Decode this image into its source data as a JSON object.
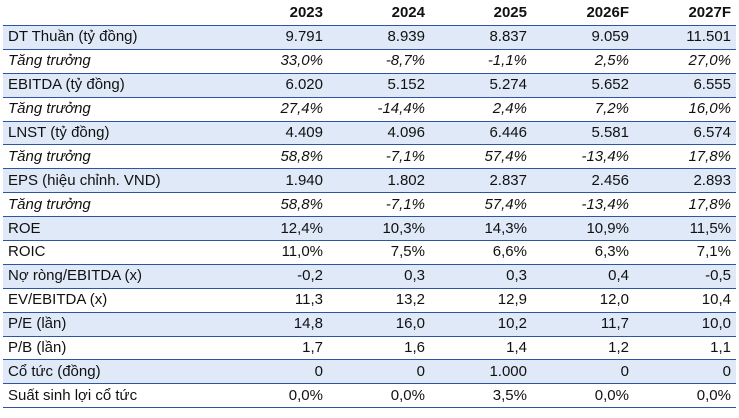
{
  "table": {
    "headers": [
      "",
      "2023",
      "2024",
      "2025",
      "2026F",
      "2027F"
    ],
    "rows": [
      {
        "label": "DT Thuần (tỷ đồng)",
        "values": [
          "9.791",
          "8.939",
          "8.837",
          "9.059",
          "11.501"
        ],
        "italic": false,
        "shaded": true
      },
      {
        "label": "Tăng trưởng",
        "values": [
          "33,0%",
          "-8,7%",
          "-1,1%",
          "2,5%",
          "27,0%"
        ],
        "italic": true,
        "shaded": false
      },
      {
        "label": "EBITDA (tỷ đồng)",
        "values": [
          "6.020",
          "5.152",
          "5.274",
          "5.652",
          "6.555"
        ],
        "italic": false,
        "shaded": true
      },
      {
        "label": "Tăng trưởng",
        "values": [
          "27,4%",
          "-14,4%",
          "2,4%",
          "7,2%",
          "16,0%"
        ],
        "italic": true,
        "shaded": false
      },
      {
        "label": "LNST (tỷ đồng)",
        "values": [
          "4.409",
          "4.096",
          "6.446",
          "5.581",
          "6.574"
        ],
        "italic": false,
        "shaded": true
      },
      {
        "label": "Tăng trưởng",
        "values": [
          "58,8%",
          "-7,1%",
          "57,4%",
          "-13,4%",
          "17,8%"
        ],
        "italic": true,
        "shaded": false
      },
      {
        "label": "EPS (hiệu chỉnh. VND)",
        "values": [
          "1.940",
          "1.802",
          "2.837",
          "2.456",
          "2.893"
        ],
        "italic": false,
        "shaded": true
      },
      {
        "label": "Tăng trưởng",
        "values": [
          "58,8%",
          "-7,1%",
          "57,4%",
          "-13,4%",
          "17,8%"
        ],
        "italic": true,
        "shaded": false
      },
      {
        "label": "ROE",
        "values": [
          "12,4%",
          "10,3%",
          "14,3%",
          "10,9%",
          "11,5%"
        ],
        "italic": false,
        "shaded": true
      },
      {
        "label": "ROIC",
        "values": [
          "11,0%",
          "7,5%",
          "6,6%",
          "6,3%",
          "7,1%"
        ],
        "italic": false,
        "shaded": false
      },
      {
        "label": "Nợ ròng/EBITDA (x)",
        "values": [
          "-0,2",
          "0,3",
          "0,3",
          "0,4",
          "-0,5"
        ],
        "italic": false,
        "shaded": true
      },
      {
        "label": "EV/EBITDA (x)",
        "values": [
          "11,3",
          "13,2",
          "12,9",
          "12,0",
          "10,4"
        ],
        "italic": false,
        "shaded": false
      },
      {
        "label": "P/E (lần)",
        "values": [
          "14,8",
          "16,0",
          "10,2",
          "11,7",
          "10,0"
        ],
        "italic": false,
        "shaded": true
      },
      {
        "label": "P/B (lần)",
        "values": [
          "1,7",
          "1,6",
          "1,4",
          "1,2",
          "1,1"
        ],
        "italic": false,
        "shaded": false
      },
      {
        "label": "Cổ tức (đồng)",
        "values": [
          "0",
          "0",
          "1.000",
          "0",
          "0"
        ],
        "italic": false,
        "shaded": true
      },
      {
        "label": "Suất sinh lợi cổ tức",
        "values": [
          "0,0%",
          "0,0%",
          "3,5%",
          "0,0%",
          "0,0%"
        ],
        "italic": false,
        "shaded": false
      }
    ]
  }
}
